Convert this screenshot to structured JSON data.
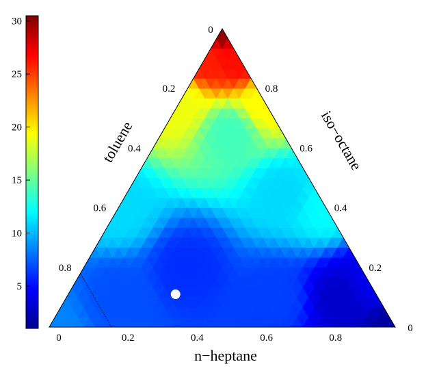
{
  "chart_data": {
    "type": "heatmap",
    "title": "",
    "subtitle": "",
    "chart_kind": "ternary contour plot with colorbar",
    "axes": {
      "bottom": {
        "label": "n−heptane",
        "ticks": [
          "0",
          "0.2",
          "0.4",
          "0.6",
          "0.8"
        ],
        "end_label": "0"
      },
      "left": {
        "label": "toluene",
        "ticks": [
          "0.8",
          "0.6",
          "0.4",
          "0.2"
        ],
        "apex_label": "0"
      },
      "right": {
        "label": "iso−octane",
        "ticks": [
          "0.8",
          "0.6",
          "0.4",
          "0.2"
        ]
      }
    },
    "colorbar": {
      "range": [
        1,
        30.5
      ],
      "ticks": [
        5,
        10,
        15,
        20,
        25,
        30
      ],
      "tick_labels": [
        "5",
        "10",
        "15",
        "20",
        "25",
        "30"
      ],
      "colormap": "jet"
    },
    "field_samples": {
      "description_units": "colorbar value at ternary point (n-heptane, iso-octane, toluene)",
      "points": [
        {
          "heptane": 0.0,
          "isooctane": 0.0,
          "toluene": 1.0,
          "value": 30.0
        },
        {
          "heptane": 0.0,
          "isooctane": 0.1,
          "toluene": 0.9,
          "value": 26.0
        },
        {
          "heptane": 0.1,
          "isooctane": 0.0,
          "toluene": 0.9,
          "value": 26.5
        },
        {
          "heptane": 0.0,
          "isooctane": 0.25,
          "toluene": 0.75,
          "value": 19.0
        },
        {
          "heptane": 0.25,
          "isooctane": 0.0,
          "toluene": 0.75,
          "value": 19.5
        },
        {
          "heptane": 0.0,
          "isooctane": 0.6,
          "toluene": 0.4,
          "value": 11.0
        },
        {
          "heptane": 0.6,
          "isooctane": 0.0,
          "toluene": 0.4,
          "value": 12.0
        },
        {
          "heptane": 0.0,
          "isooctane": 1.0,
          "toluene": 0.0,
          "value": 8.5
        },
        {
          "heptane": 1.0,
          "isooctane": 0.0,
          "toluene": 0.0,
          "value": 1.5
        },
        {
          "heptane": 0.3,
          "isooctane": 0.5,
          "toluene": 0.2,
          "value": 6.0
        },
        {
          "heptane": 0.6,
          "isooctane": 0.3,
          "toluene": 0.1,
          "value": 6.5
        },
        {
          "heptane": 0.15,
          "isooctane": 0.75,
          "toluene": 0.1,
          "value": 7.0
        },
        {
          "heptane": 0.2,
          "isooctane": 0.15,
          "toluene": 0.65,
          "value": 14.0
        },
        {
          "heptane": 0.45,
          "isooctane": 0.1,
          "toluene": 0.45,
          "value": 11.0
        },
        {
          "heptane": 0.8,
          "isooctane": 0.1,
          "toluene": 0.1,
          "value": 3.0
        },
        {
          "heptane": 0.85,
          "isooctane": 0.0,
          "toluene": 0.15,
          "value": 4.0
        }
      ]
    },
    "marker": {
      "shape": "circle",
      "color": "#ffffff",
      "heptane": 0.31,
      "isooctane": 0.58,
      "toluene": 0.11
    },
    "reference_line": {
      "style": "dotted",
      "color": "#000000",
      "from": {
        "heptane": 0.18,
        "isooctane": 0.82,
        "toluene": 0.0
      },
      "to": {
        "heptane": 0.0,
        "isooctane": 0.82,
        "toluene": 0.18
      }
    },
    "grid": false
  }
}
